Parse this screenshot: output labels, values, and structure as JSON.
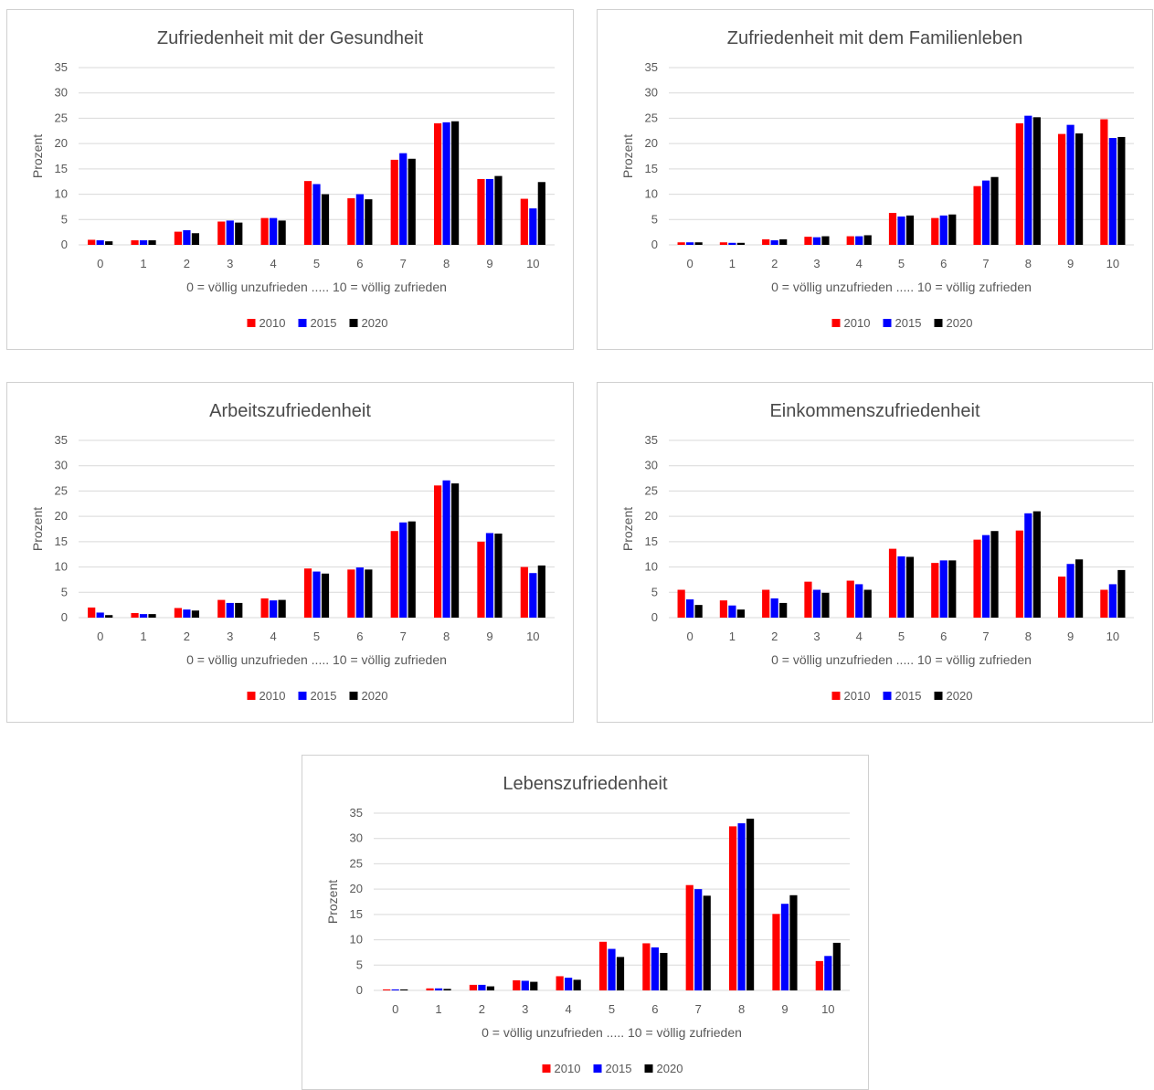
{
  "colors": {
    "2010": "#ff0000",
    "2015": "#0000ff",
    "2020": "#000000",
    "grid": "#d9d9d9"
  },
  "chart_data": [
    {
      "type": "bar",
      "title": "Zufriedenheit mit der Gesundheit",
      "xlabel": "0 = völlig unzufrieden ..... 10 = völlig zufrieden",
      "ylabel": "Prozent",
      "ylim": [
        0,
        35
      ],
      "yticks": [
        0,
        5,
        10,
        15,
        20,
        25,
        30,
        35
      ],
      "grid": true,
      "legend": "bottom",
      "categories": [
        "0",
        "1",
        "2",
        "3",
        "4",
        "5",
        "6",
        "7",
        "8",
        "9",
        "10"
      ],
      "series": [
        {
          "name": "2010",
          "values": [
            1.0,
            0.9,
            2.6,
            4.6,
            5.3,
            12.6,
            9.2,
            16.8,
            24.0,
            13.0,
            9.1
          ]
        },
        {
          "name": "2015",
          "values": [
            0.9,
            0.9,
            2.9,
            4.8,
            5.3,
            12.0,
            10.0,
            18.1,
            24.2,
            13.0,
            7.2
          ]
        },
        {
          "name": "2020",
          "values": [
            0.7,
            0.9,
            2.3,
            4.4,
            4.8,
            10.0,
            9.0,
            17.0,
            24.4,
            13.6,
            12.4
          ]
        }
      ]
    },
    {
      "type": "bar",
      "title": "Zufriedenheit mit dem Familienleben",
      "xlabel": "0 = völlig unzufrieden ..... 10 = völlig zufrieden",
      "ylabel": "Prozent",
      "ylim": [
        0,
        35
      ],
      "yticks": [
        0,
        5,
        10,
        15,
        20,
        25,
        30,
        35
      ],
      "grid": true,
      "legend": "bottom",
      "categories": [
        "0",
        "1",
        "2",
        "3",
        "4",
        "5",
        "6",
        "7",
        "8",
        "9",
        "10"
      ],
      "series": [
        {
          "name": "2010",
          "values": [
            0.5,
            0.5,
            1.1,
            1.6,
            1.7,
            6.3,
            5.3,
            11.6,
            24.0,
            21.9,
            24.8
          ]
        },
        {
          "name": "2015",
          "values": [
            0.5,
            0.4,
            0.9,
            1.5,
            1.7,
            5.6,
            5.8,
            12.7,
            25.5,
            23.7,
            21.1
          ]
        },
        {
          "name": "2020",
          "values": [
            0.5,
            0.4,
            1.1,
            1.7,
            1.9,
            5.8,
            6.0,
            13.4,
            25.2,
            22.0,
            21.3
          ]
        }
      ]
    },
    {
      "type": "bar",
      "title": "Arbeitszufriedenheit",
      "xlabel": "0 = völlig unzufrieden ..... 10 = völlig zufrieden",
      "ylabel": "Prozent",
      "ylim": [
        0,
        35
      ],
      "yticks": [
        0,
        5,
        10,
        15,
        20,
        25,
        30,
        35
      ],
      "grid": true,
      "legend": "bottom",
      "categories": [
        "0",
        "1",
        "2",
        "3",
        "4",
        "5",
        "6",
        "7",
        "8",
        "9",
        "10"
      ],
      "series": [
        {
          "name": "2010",
          "values": [
            2.0,
            0.9,
            1.9,
            3.5,
            3.8,
            9.7,
            9.5,
            17.1,
            26.1,
            15.0,
            10.0
          ]
        },
        {
          "name": "2015",
          "values": [
            1.0,
            0.7,
            1.6,
            2.9,
            3.4,
            9.1,
            9.9,
            18.8,
            27.1,
            16.7,
            8.8
          ]
        },
        {
          "name": "2020",
          "values": [
            0.5,
            0.7,
            1.4,
            2.9,
            3.5,
            8.7,
            9.5,
            19.0,
            26.5,
            16.6,
            10.3
          ]
        }
      ]
    },
    {
      "type": "bar",
      "title": "Einkommenszufriedenheit",
      "xlabel": "0 = völlig unzufrieden ..... 10 = völlig zufrieden",
      "ylabel": "Prozent",
      "ylim": [
        0,
        35
      ],
      "yticks": [
        0,
        5,
        10,
        15,
        20,
        25,
        30,
        35
      ],
      "grid": true,
      "legend": "bottom",
      "categories": [
        "0",
        "1",
        "2",
        "3",
        "4",
        "5",
        "6",
        "7",
        "8",
        "9",
        "10"
      ],
      "series": [
        {
          "name": "2010",
          "values": [
            5.5,
            3.4,
            5.5,
            7.1,
            7.3,
            13.6,
            10.8,
            15.4,
            17.2,
            8.1,
            5.5
          ]
        },
        {
          "name": "2015",
          "values": [
            3.6,
            2.4,
            3.8,
            5.5,
            6.6,
            12.1,
            11.3,
            16.3,
            20.6,
            10.6,
            6.6
          ]
        },
        {
          "name": "2020",
          "values": [
            2.5,
            1.6,
            2.9,
            4.9,
            5.5,
            12.0,
            11.3,
            17.1,
            21.0,
            11.5,
            9.4
          ]
        }
      ]
    },
    {
      "type": "bar",
      "title": "Lebenszufriedenheit",
      "xlabel": "0 = völlig unzufrieden ..... 10 = völlig zufrieden",
      "ylabel": "Prozent",
      "ylim": [
        0,
        35
      ],
      "yticks": [
        0,
        5,
        10,
        15,
        20,
        25,
        30,
        35
      ],
      "grid": true,
      "legend": "bottom",
      "categories": [
        "0",
        "1",
        "2",
        "3",
        "4",
        "5",
        "6",
        "7",
        "8",
        "9",
        "10"
      ],
      "series": [
        {
          "name": "2010",
          "values": [
            0.2,
            0.4,
            1.1,
            2.0,
            2.8,
            9.6,
            9.3,
            20.8,
            32.4,
            15.1,
            5.8
          ]
        },
        {
          "name": "2015",
          "values": [
            0.2,
            0.4,
            1.1,
            1.9,
            2.5,
            8.2,
            8.5,
            20.0,
            33.0,
            17.1,
            6.8
          ]
        },
        {
          "name": "2020",
          "values": [
            0.2,
            0.3,
            0.8,
            1.7,
            2.1,
            6.6,
            7.4,
            18.7,
            33.9,
            18.8,
            9.4
          ]
        }
      ]
    }
  ]
}
